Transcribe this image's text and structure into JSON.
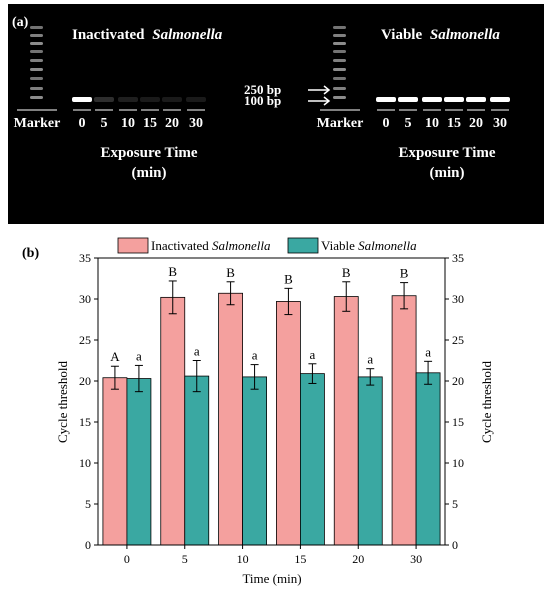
{
  "panel_a": {
    "label": "(a)",
    "left_gel": {
      "title_plain": "Inactivated ",
      "title_italic": "Salmonella",
      "lane_labels": [
        "Marker",
        "0",
        "5",
        "10",
        "15",
        "20",
        "30"
      ],
      "band_intensity": [
        1.0,
        0.18,
        0.12,
        0.1,
        0.1,
        0.1
      ]
    },
    "right_gel": {
      "title_plain": "Viable ",
      "title_italic": "Salmonella",
      "lane_labels": [
        "Marker",
        "0",
        "5",
        "10",
        "15",
        "20",
        "30"
      ],
      "band_intensity": [
        1.0,
        1.0,
        1.0,
        1.0,
        1.0,
        1.0
      ]
    },
    "marker_arrows": [
      "250 bp",
      "100 bp"
    ],
    "xlabel": "Exposure Time",
    "xlabel_unit": "(min)",
    "colors": {
      "background": "#000000",
      "band": "#ffffff",
      "text": "#ffffff"
    }
  },
  "chart_data": {
    "panel_label": "(b)",
    "type": "bar",
    "categories": [
      "0",
      "5",
      "10",
      "15",
      "20",
      "30"
    ],
    "series": [
      {
        "name_plain": "Inactivated ",
        "name_italic": "Salmonella",
        "values": [
          20.4,
          30.2,
          30.7,
          29.7,
          30.3,
          30.4
        ],
        "errors": [
          1.4,
          2.0,
          1.4,
          1.6,
          1.8,
          1.6
        ],
        "letters": [
          "A",
          "B",
          "B",
          "B",
          "B",
          "B"
        ],
        "color": "#f4a09e"
      },
      {
        "name_plain": "Viable ",
        "name_italic": "Salmonella",
        "values": [
          20.3,
          20.6,
          20.5,
          20.9,
          20.5,
          21.0
        ],
        "errors": [
          1.6,
          1.9,
          1.5,
          1.2,
          1.0,
          1.4
        ],
        "letters": [
          "a",
          "a",
          "a",
          "a",
          "a",
          "a"
        ],
        "color": "#3aa8a2"
      }
    ],
    "xlabel": "Time (min)",
    "ylabel": "Cycle threshold",
    "ylabel_right": "Cycle threshold",
    "ylim": [
      0,
      35
    ],
    "yticks": [
      0,
      5,
      10,
      15,
      20,
      25,
      30,
      35
    ],
    "grid": false,
    "legend_position": "top"
  }
}
